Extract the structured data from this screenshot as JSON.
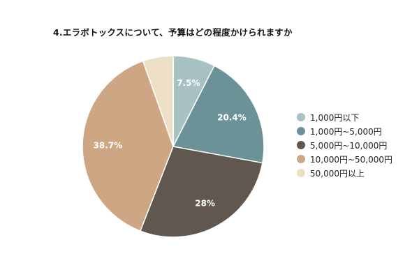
{
  "chart_data": {
    "type": "pie",
    "title": "4.エラボトックスについて、予算はどの程度かけられますか",
    "categories": [
      "1,000円以下",
      "1,000円~5,000円",
      "5,000円~10,000円",
      "10,000円~50,000円",
      "50,000円以上"
    ],
    "values": [
      7.5,
      20.4,
      28.0,
      38.7,
      5.4
    ],
    "data_labels": [
      "7.5%",
      "20.4%",
      "28%",
      "38.7%",
      ""
    ],
    "colors": [
      "#a8c1c2",
      "#6b9296",
      "#62574e",
      "#cda683",
      "#ecdfc6"
    ],
    "legend_position": "right",
    "start_angle_deg": 0,
    "direction": "clockwise"
  }
}
